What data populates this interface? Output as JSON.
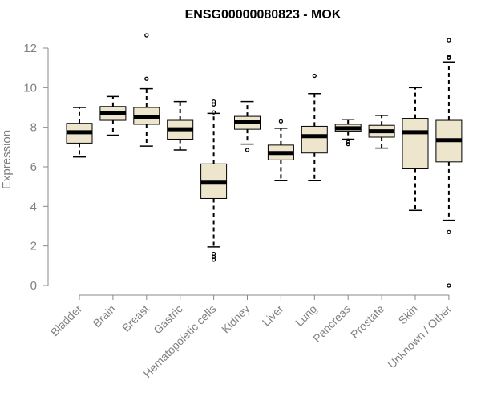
{
  "chart_data": {
    "type": "boxplot",
    "title": "ENSG00000080823 - MOK",
    "xlabel": "",
    "ylabel": "Expression",
    "ylim": [
      0,
      12
    ],
    "yticks": [
      0,
      2,
      4,
      6,
      8,
      10,
      12
    ],
    "categories": [
      "Bladder",
      "Brain",
      "Breast",
      "Gastric",
      "Hematopoietic cells",
      "Kidney",
      "Liver",
      "Lung",
      "Pancreas",
      "Prostate",
      "Skin",
      "Unknown / Other"
    ],
    "boxes": [
      {
        "name": "Bladder",
        "whisker_low": 6.5,
        "q1": 7.2,
        "median": 7.75,
        "q3": 8.2,
        "whisker_high": 9.0,
        "outliers": []
      },
      {
        "name": "Brain",
        "whisker_low": 7.6,
        "q1": 8.35,
        "median": 8.7,
        "q3": 9.05,
        "whisker_high": 9.55,
        "outliers": []
      },
      {
        "name": "Breast",
        "whisker_low": 7.05,
        "q1": 8.15,
        "median": 8.5,
        "q3": 9.0,
        "whisker_high": 9.95,
        "outliers": [
          10.45,
          12.65
        ]
      },
      {
        "name": "Gastric",
        "whisker_low": 6.85,
        "q1": 7.4,
        "median": 7.9,
        "q3": 8.35,
        "whisker_high": 9.3,
        "outliers": []
      },
      {
        "name": "Hematopoietic cells",
        "whisker_low": 1.95,
        "q1": 4.4,
        "median": 5.2,
        "q3": 6.15,
        "whisker_high": 8.7,
        "outliers": [
          1.3,
          1.45,
          1.6,
          8.75,
          9.15,
          9.3
        ]
      },
      {
        "name": "Kidney",
        "whisker_low": 7.15,
        "q1": 7.9,
        "median": 8.25,
        "q3": 8.55,
        "whisker_high": 9.3,
        "outliers": [
          6.85
        ]
      },
      {
        "name": "Liver",
        "whisker_low": 5.3,
        "q1": 6.35,
        "median": 6.7,
        "q3": 7.1,
        "whisker_high": 7.95,
        "outliers": [
          8.3
        ]
      },
      {
        "name": "Lung",
        "whisker_low": 5.3,
        "q1": 6.7,
        "median": 7.55,
        "q3": 8.05,
        "whisker_high": 9.7,
        "outliers": [
          10.6
        ]
      },
      {
        "name": "Pancreas",
        "whisker_low": 7.4,
        "q1": 7.8,
        "median": 7.95,
        "q3": 8.15,
        "whisker_high": 8.4,
        "outliers": [
          7.15,
          7.25
        ]
      },
      {
        "name": "Prostate",
        "whisker_low": 6.95,
        "q1": 7.5,
        "median": 7.8,
        "q3": 8.1,
        "whisker_high": 8.6,
        "outliers": []
      },
      {
        "name": "Skin",
        "whisker_low": 3.8,
        "q1": 5.9,
        "median": 7.75,
        "q3": 8.45,
        "whisker_high": 10.0,
        "outliers": []
      },
      {
        "name": "Unknown / Other",
        "whisker_low": 3.3,
        "q1": 6.25,
        "median": 7.35,
        "q3": 8.35,
        "whisker_high": 11.3,
        "outliers": [
          0.0,
          2.7,
          11.5,
          11.55,
          12.4
        ]
      }
    ],
    "colors": {
      "box_fill": "#ede5cc",
      "box_stroke": "#000000",
      "axis": "#888888",
      "text": "#808080",
      "title": "#000000"
    },
    "grid": false,
    "legend": "none"
  }
}
